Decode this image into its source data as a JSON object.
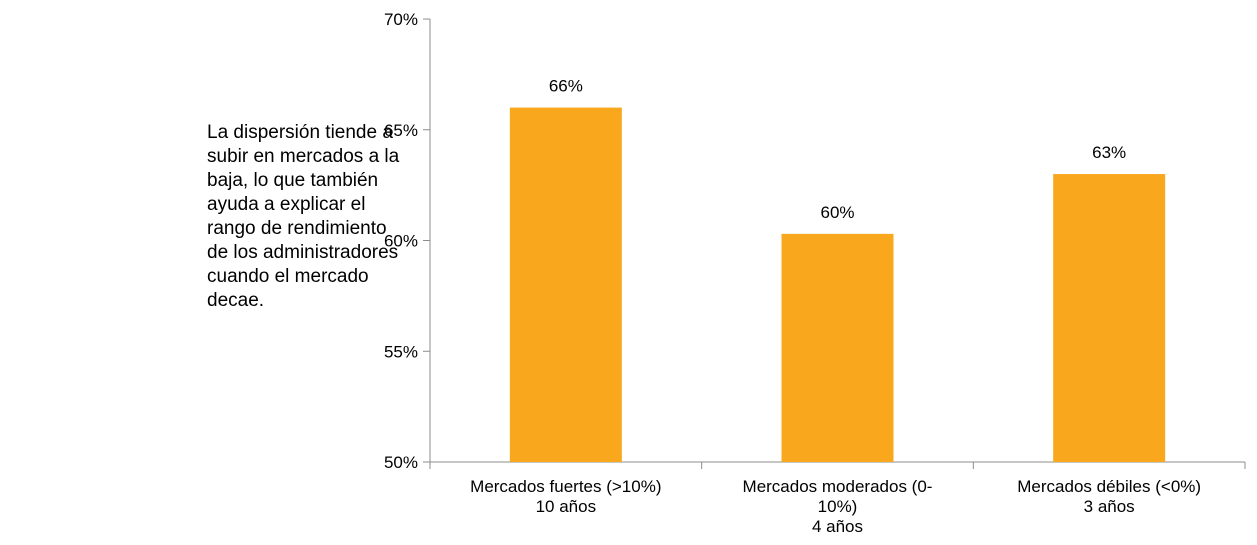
{
  "side_note": "La dispersión tiende a\nsubir en mercados a la\nbaja, lo que también\nayuda a explicar el\nrango de rendimiento\nde los administradores\ncuando el mercado\ndecae.",
  "colors": {
    "bar": "#F9A81E",
    "axis": "#8c8c8c"
  },
  "chart_data": {
    "type": "bar",
    "categories": [
      [
        "Mercados fuertes (>10%)",
        "10 años"
      ],
      [
        "Mercados moderados (0-",
        "10%)",
        "4 años"
      ],
      [
        "Mercados débiles (<0%)",
        "3 años"
      ]
    ],
    "values": [
      66,
      60.3,
      63
    ],
    "data_labels": [
      "66%",
      "60%",
      "63%"
    ],
    "yticks": [
      "50%",
      "55%",
      "60%",
      "65%",
      "70%"
    ],
    "ylim": [
      50,
      70
    ],
    "grid": false,
    "legend": false
  }
}
